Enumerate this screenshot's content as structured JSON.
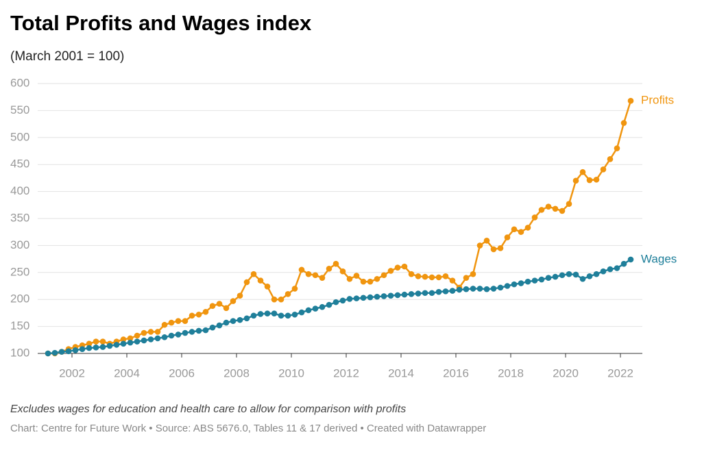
{
  "chart_data": {
    "type": "line",
    "title": "Total Profits and Wages index",
    "subtitle": "(March 2001 = 100)",
    "notes": "Excludes wages for education and health care to allow for comparison with profits",
    "source": "Chart: Centre for Future Work • Source: ABS 5676.0, Tables 11 & 17 derived • Created with Datawrapper",
    "x": [
      2001.125,
      2001.375,
      2001.625,
      2001.875,
      2002.125,
      2002.375,
      2002.625,
      2002.875,
      2003.125,
      2003.375,
      2003.625,
      2003.875,
      2004.125,
      2004.375,
      2004.625,
      2004.875,
      2005.125,
      2005.375,
      2005.625,
      2005.875,
      2006.125,
      2006.375,
      2006.625,
      2006.875,
      2007.125,
      2007.375,
      2007.625,
      2007.875,
      2008.125,
      2008.375,
      2008.625,
      2008.875,
      2009.125,
      2009.375,
      2009.625,
      2009.875,
      2010.125,
      2010.375,
      2010.625,
      2010.875,
      2011.125,
      2011.375,
      2011.625,
      2011.875,
      2012.125,
      2012.375,
      2012.625,
      2012.875,
      2013.125,
      2013.375,
      2013.625,
      2013.875,
      2014.125,
      2014.375,
      2014.625,
      2014.875,
      2015.125,
      2015.375,
      2015.625,
      2015.875,
      2016.125,
      2016.375,
      2016.625,
      2016.875,
      2017.125,
      2017.375,
      2017.625,
      2017.875,
      2018.125,
      2018.375,
      2018.625,
      2018.875,
      2019.125,
      2019.375,
      2019.625,
      2019.875,
      2020.125,
      2020.375,
      2020.625,
      2020.875,
      2021.125,
      2021.375,
      2021.625,
      2021.875,
      2022.125,
      2022.375
    ],
    "series": [
      {
        "name": "Profits",
        "color": "#f0950f",
        "values": [
          100,
          100,
          103,
          108,
          112,
          115,
          118,
          122,
          122,
          118,
          122,
          126,
          128,
          133,
          138,
          140,
          140,
          153,
          157,
          160,
          160,
          170,
          172,
          177,
          188,
          192,
          184,
          197,
          207,
          232,
          247,
          235,
          224,
          200,
          200,
          210,
          220,
          255,
          247,
          245,
          240,
          257,
          266,
          252,
          238,
          244,
          233,
          233,
          238,
          245,
          253,
          259,
          261,
          247,
          243,
          242,
          241,
          241,
          243,
          235,
          222,
          240,
          247,
          300,
          309,
          293,
          295,
          315,
          330,
          325,
          333,
          352,
          366,
          372,
          368,
          364,
          377,
          420,
          436,
          421,
          422,
          441,
          460,
          480,
          527,
          568
        ]
      },
      {
        "name": "Wages",
        "color": "#1f7f9a",
        "values": [
          100,
          101,
          103,
          104,
          106,
          108,
          110,
          111,
          112,
          114,
          116,
          118,
          120,
          122,
          124,
          126,
          128,
          130,
          133,
          135,
          138,
          140,
          142,
          143,
          148,
          152,
          157,
          160,
          162,
          165,
          170,
          173,
          174,
          174,
          170,
          170,
          172,
          176,
          180,
          183,
          186,
          190,
          195,
          198,
          201,
          202,
          203,
          204,
          205,
          206,
          207,
          208,
          209,
          210,
          211,
          212,
          212,
          214,
          215,
          216,
          218,
          219,
          220,
          220,
          219,
          220,
          222,
          225,
          228,
          230,
          233,
          235,
          237,
          240,
          242,
          245,
          247,
          246,
          238,
          243,
          247,
          252,
          256,
          258,
          266,
          274
        ]
      }
    ],
    "xlim": [
      2000.75,
      2022.8
    ],
    "xticks": [
      2002,
      2004,
      2006,
      2008,
      2010,
      2012,
      2014,
      2016,
      2018,
      2020,
      2022
    ],
    "ylim": [
      100,
      600
    ],
    "yticks": [
      100,
      150,
      200,
      250,
      300,
      350,
      400,
      450,
      500,
      550,
      600
    ],
    "grid": true
  }
}
